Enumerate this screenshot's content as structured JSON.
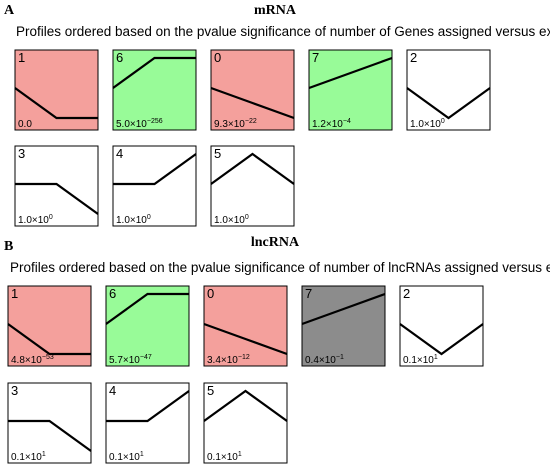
{
  "panels": [
    {
      "letter": "A",
      "title": "mRNA",
      "subtitle": "Profiles ordered based on the pvalue significance of number of Genes assigned versus expected",
      "profiles": [
        {
          "id": "1",
          "color": "#f4a09c",
          "values": [
            0,
            -1,
            -1
          ],
          "pvalue": {
            "base": "0.0"
          }
        },
        {
          "id": "6",
          "color": "#98fb98",
          "values": [
            0,
            1,
            1
          ],
          "pvalue": {
            "base": "5.0×10",
            "exp": "−256"
          }
        },
        {
          "id": "0",
          "color": "#f4a09c",
          "values": [
            0,
            -1,
            -2
          ],
          "pvalue": {
            "base": "9.3×10",
            "exp": "−22"
          }
        },
        {
          "id": "7",
          "color": "#98fb98",
          "values": [
            0,
            1,
            2
          ],
          "pvalue": {
            "base": "1.2×10",
            "exp": "−4"
          }
        },
        {
          "id": "2",
          "color": "#ffffff",
          "values": [
            0,
            -1,
            0
          ],
          "pvalue": {
            "base": "1.0×10",
            "exp": "0"
          }
        },
        {
          "id": "3",
          "color": "#ffffff",
          "values": [
            0,
            0,
            -1
          ],
          "pvalue": {
            "base": "1.0×10",
            "exp": "0"
          }
        },
        {
          "id": "4",
          "color": "#ffffff",
          "values": [
            0,
            0,
            1
          ],
          "pvalue": {
            "base": "1.0×10",
            "exp": "0"
          }
        },
        {
          "id": "5",
          "color": "#ffffff",
          "values": [
            0,
            1,
            0
          ],
          "pvalue": {
            "base": "1.0×10",
            "exp": "0"
          }
        }
      ]
    },
    {
      "letter": "B",
      "title": "lncRNA",
      "subtitle": "Profiles ordered based on the pvalue significance of number of lncRNAs assigned versus expected",
      "profiles": [
        {
          "id": "1",
          "color": "#f4a09c",
          "values": [
            0,
            -1,
            -1
          ],
          "pvalue": {
            "base": "4.8×10",
            "exp": "−53"
          }
        },
        {
          "id": "6",
          "color": "#98fb98",
          "values": [
            0,
            1,
            1
          ],
          "pvalue": {
            "base": "5.7×10",
            "exp": "−47"
          }
        },
        {
          "id": "0",
          "color": "#f4a09c",
          "values": [
            0,
            -1,
            -2
          ],
          "pvalue": {
            "base": "3.4×10",
            "exp": "−12"
          }
        },
        {
          "id": "7",
          "color": "#8c8c8c",
          "values": [
            0,
            1,
            2
          ],
          "pvalue": {
            "base": "0.4×10",
            "exp": "−1"
          }
        },
        {
          "id": "2",
          "color": "#ffffff",
          "values": [
            0,
            -1,
            0
          ],
          "pvalue": {
            "base": "0.1×10",
            "exp": "1"
          }
        },
        {
          "id": "3",
          "color": "#ffffff",
          "values": [
            0,
            0,
            -1
          ],
          "pvalue": {
            "base": "0.1×10",
            "exp": "1"
          }
        },
        {
          "id": "4",
          "color": "#ffffff",
          "values": [
            0,
            0,
            1
          ],
          "pvalue": {
            "base": "0.1×10",
            "exp": "1"
          }
        },
        {
          "id": "5",
          "color": "#ffffff",
          "values": [
            0,
            1,
            0
          ],
          "pvalue": {
            "base": "0.1×10",
            "exp": "1"
          }
        }
      ]
    }
  ]
}
